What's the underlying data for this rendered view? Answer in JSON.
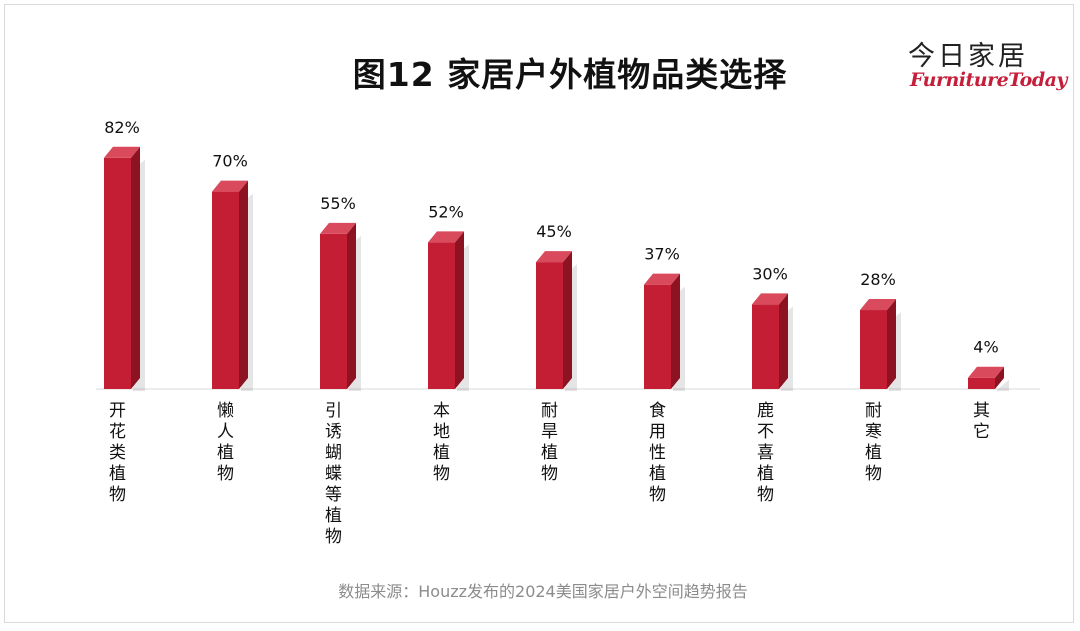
{
  "title": "图12  家居户外植物品类选择",
  "logo": {
    "cn": "今日家居",
    "en": "FurnitureToday"
  },
  "source": "数据来源：Houzz发布的2024美国家居户外空间趋势报告",
  "chart_data": {
    "type": "bar",
    "title": "图12  家居户外植物品类选择",
    "categories": [
      "开花类植物",
      "懒人植物",
      "引诱蝴蝶等植物",
      "本地植物",
      "耐旱植物",
      "食用性植物",
      "鹿不喜植物",
      "耐寒植物",
      "其它"
    ],
    "values": [
      82,
      70,
      55,
      52,
      45,
      37,
      30,
      28,
      4
    ],
    "value_labels": [
      "82%",
      "70%",
      "55%",
      "52%",
      "45%",
      "37%",
      "30%",
      "28%",
      "4%"
    ],
    "ylim": [
      0,
      100
    ],
    "grid": false,
    "legend": "none",
    "colors": {
      "bar_front": "#c41e34",
      "bar_side": "#8e1322",
      "bar_top": "#d94a5c"
    }
  }
}
